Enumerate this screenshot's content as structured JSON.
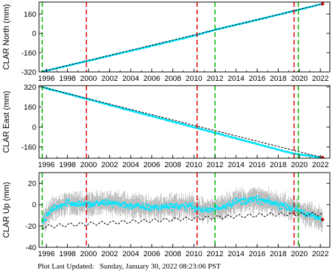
{
  "footer": {
    "label": "Plot Last Updated:",
    "timestamp": "Sunday, January 30, 2022 08:23:06 PST"
  },
  "colors": {
    "data": "#00e5ff",
    "error_bar": "#a8a8a8",
    "model": "#000000",
    "red_marker": "#e00000",
    "green_marker": "#00bb00",
    "final_point": "#cc0000"
  },
  "chart_data": [
    {
      "type": "scatter",
      "ylabel": "CLAR North (mm)",
      "xlim": [
        1995.3,
        2022.9
      ],
      "ylim": [
        -320,
        260
      ],
      "xticks": [
        1996,
        1998,
        2000,
        2002,
        2004,
        2006,
        2008,
        2010,
        2012,
        2014,
        2016,
        2018,
        2020,
        2022
      ],
      "yticks": [
        -320,
        -160,
        0,
        160
      ],
      "series": [
        {
          "kind": "data",
          "x": [
            1995.6,
            2000,
            2004,
            2008,
            2010.2,
            2012,
            2016,
            2019.5,
            2022.2
          ],
          "y": [
            -318,
            -227,
            -145,
            -62,
            -15,
            30,
            112,
            187,
            245
          ],
          "error": 6
        },
        {
          "kind": "model",
          "x": [
            1995.6,
            2022.2
          ],
          "y": [
            -318,
            245
          ]
        }
      ],
      "red_lines": [
        1999.8,
        2010.3,
        2019.5
      ],
      "green_lines": [
        1995.6,
        2012.0,
        2019.9
      ]
    },
    {
      "type": "scatter",
      "ylabel": "CLAR East (mm)",
      "xlim": [
        1995.3,
        2022.9
      ],
      "ylim": [
        -250,
        330
      ],
      "xticks": [
        1996,
        1998,
        2000,
        2002,
        2004,
        2006,
        2008,
        2010,
        2012,
        2014,
        2016,
        2018,
        2020,
        2022
      ],
      "yticks": [
        -160,
        0,
        160,
        320
      ],
      "series": [
        {
          "kind": "data",
          "x": [
            1995.6,
            2000,
            2004,
            2008,
            2010.2,
            2012,
            2016,
            2019.5,
            2022.2
          ],
          "y": [
            318,
            220,
            130,
            42,
            -6,
            -47,
            -136,
            -214,
            -245
          ],
          "error": 7
        },
        {
          "kind": "model",
          "x": [
            1995.6,
            2022.2
          ],
          "y": [
            318,
            -245
          ]
        }
      ],
      "red_lines": [
        1999.8,
        2010.3,
        2019.5
      ],
      "green_lines": [
        1995.6,
        2012.0,
        2019.9
      ]
    },
    {
      "type": "scatter",
      "ylabel": "CLAR Up (mm)",
      "xlim": [
        1995.3,
        2022.9
      ],
      "ylim": [
        -40,
        30
      ],
      "xticks": [
        1996,
        1998,
        2000,
        2002,
        2004,
        2006,
        2008,
        2010,
        2012,
        2014,
        2016,
        2018,
        2020,
        2022
      ],
      "yticks": [
        -40,
        -20,
        0,
        20
      ],
      "series": [
        {
          "kind": "data",
          "x": [
            1995.6,
            1996.5,
            1998,
            2000,
            2002,
            2004,
            2006,
            2008,
            2010,
            2011,
            2012,
            2014,
            2016,
            2018,
            2019.5,
            2020.5,
            2021.5,
            2022.2
          ],
          "y": [
            -18,
            -4,
            2,
            0,
            2,
            -1,
            -3,
            -1,
            -2,
            -6,
            -4,
            3,
            5,
            0,
            -3,
            -8,
            -12,
            -14
          ],
          "error": 8
        },
        {
          "kind": "model",
          "x": [
            1995.6,
            1998,
            2002,
            2006,
            2010,
            2014,
            2018,
            2022.2
          ],
          "y": [
            -21,
            -19,
            -17,
            -15,
            -13,
            -11,
            -9,
            -9
          ],
          "annual_amplitude": 1.6
        }
      ],
      "red_lines": [
        1999.8,
        2010.3,
        2019.5
      ],
      "green_lines": [
        1995.6,
        2012.0,
        2019.9
      ]
    }
  ]
}
